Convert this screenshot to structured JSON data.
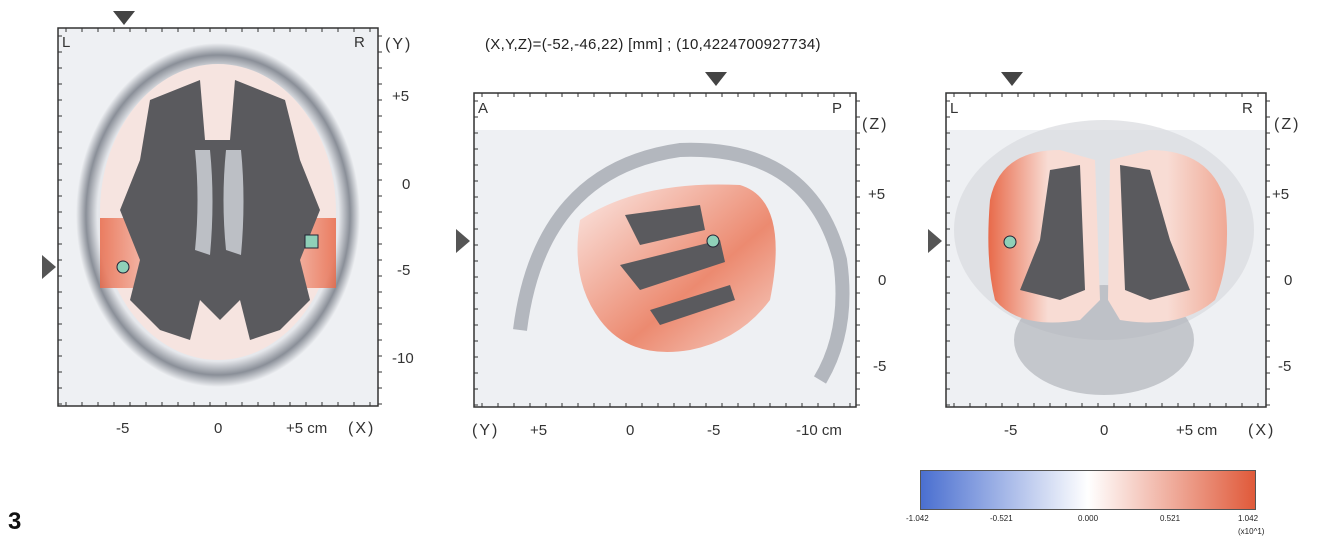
{
  "figure_number": "3",
  "coordinates_readout": "(X,Y,Z)=(-52,-46,22) [mm] ; (10,4224700927734)",
  "panels": {
    "axial": {
      "corner_left": "L",
      "corner_right": "R",
      "right_axis_name": "(Y)",
      "right_ticks": [
        "+5",
        "0",
        "-5",
        "-10"
      ],
      "bottom_ticks": [
        "-5",
        "0",
        "+5 cm"
      ],
      "bottom_axis_name": "(X)"
    },
    "sagittal": {
      "corner_left": "A",
      "corner_right": "P",
      "right_axis_name": "(Z)",
      "right_ticks": [
        "+5",
        "0",
        "-5"
      ],
      "bottom_axis_name": "(Y)",
      "bottom_ticks": [
        "+5",
        "0",
        "-5",
        "-10 cm"
      ]
    },
    "coronal": {
      "corner_left": "L",
      "corner_right": "R",
      "right_axis_name": "(Z)",
      "right_ticks": [
        "+5",
        "0",
        "-5"
      ],
      "bottom_ticks": [
        "-5",
        "0",
        "+5 cm"
      ],
      "bottom_axis_name": "(X)"
    }
  },
  "colorbar": {
    "ticks": [
      "-1.042",
      "-0.521",
      "0.000",
      "0.521",
      "1.042"
    ],
    "multiplier": "(x10^1)",
    "color_min": "#4a6fd0",
    "color_mid": "#ffffff",
    "color_max": "#e05a3a"
  }
}
